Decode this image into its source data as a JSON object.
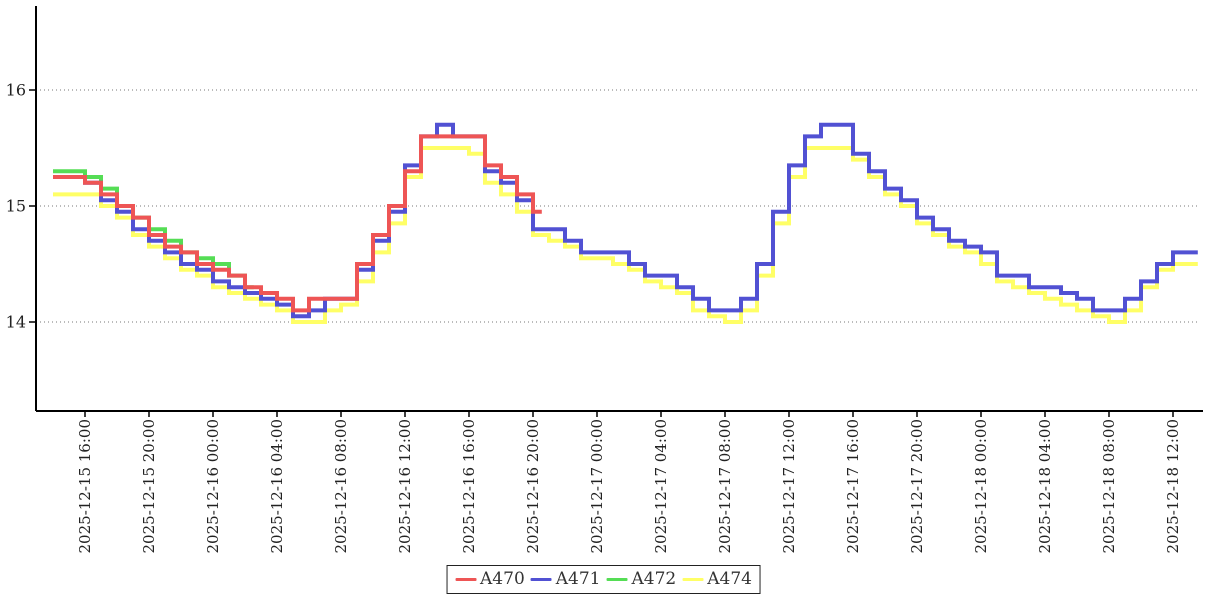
{
  "chart_data": {
    "type": "line",
    "step_interpolation": "step-after",
    "title": "",
    "xlabel": "",
    "ylabel": "",
    "grid": "horizontal-dotted",
    "legend_position": "bottom-center",
    "colors": {
      "axis": "#000000",
      "grid": "#777777",
      "tick_text": "#222222"
    },
    "y_axis": {
      "ticks": [
        16,
        15,
        14
      ],
      "range": [
        13.2,
        16.7
      ]
    },
    "x_axis": {
      "tick_interval_hours": 4,
      "tick_labels": [
        "2025-12-15 16:00",
        "2025-12-15 20:00",
        "2025-12-16 00:00",
        "2025-12-16 04:00",
        "2025-12-16 08:00",
        "2025-12-16 12:00",
        "2025-12-16 16:00",
        "2025-12-16 20:00",
        "2025-12-17 00:00",
        "2025-12-17 04:00",
        "2025-12-17 08:00",
        "2025-12-17 12:00",
        "2025-12-17 16:00",
        "2025-12-17 20:00",
        "2025-12-18 00:00",
        "2025-12-18 04:00",
        "2025-12-18 08:00",
        "2025-12-18 12:00"
      ]
    },
    "series_start": "2025-12-15 14:00",
    "sample_interval_hours": 1,
    "series": [
      {
        "name": "A470",
        "color": "#ee5555",
        "values": [
          15.25,
          15.25,
          15.2,
          15.1,
          15.0,
          14.9,
          14.75,
          14.65,
          14.6,
          14.5,
          14.45,
          14.4,
          14.3,
          14.25,
          14.2,
          14.1,
          14.2,
          14.2,
          14.2,
          14.5,
          14.75,
          15.0,
          15.3,
          15.6,
          15.6,
          15.6,
          15.6,
          15.35,
          15.25,
          15.1,
          14.95
        ]
      },
      {
        "name": "A471",
        "color": "#5151d3",
        "values": [
          15.25,
          15.25,
          15.2,
          15.05,
          14.95,
          14.8,
          14.7,
          14.6,
          14.5,
          14.45,
          14.35,
          14.3,
          14.25,
          14.2,
          14.15,
          14.05,
          14.1,
          14.2,
          14.2,
          14.45,
          14.7,
          14.95,
          15.35,
          15.6,
          15.7,
          15.6,
          15.6,
          15.3,
          15.2,
          15.05,
          14.8,
          14.8,
          14.7,
          14.6,
          14.6,
          14.6,
          14.5,
          14.4,
          14.4,
          14.3,
          14.2,
          14.1,
          14.1,
          14.2,
          14.5,
          14.95,
          15.35,
          15.6,
          15.7,
          15.7,
          15.45,
          15.3,
          15.15,
          15.05,
          14.9,
          14.8,
          14.7,
          14.65,
          14.6,
          14.4,
          14.4,
          14.3,
          14.3,
          14.25,
          14.2,
          14.1,
          14.1,
          14.2,
          14.35,
          14.5,
          14.6,
          14.6
        ]
      },
      {
        "name": "A472",
        "color": "#55dd55",
        "values": [
          15.3,
          15.3,
          15.25,
          15.15,
          15.0,
          14.9,
          14.8,
          14.7,
          14.6,
          14.55,
          14.5,
          14.4,
          14.3
        ]
      },
      {
        "name": "A474",
        "color": "#ffff66",
        "values": [
          15.1,
          15.1,
          15.1,
          15.0,
          14.9,
          14.75,
          14.65,
          14.55,
          14.45,
          14.4,
          14.3,
          14.25,
          14.2,
          14.15,
          14.1,
          14.0,
          14.0,
          14.1,
          14.15,
          14.35,
          14.6,
          14.85,
          15.25,
          15.5,
          15.5,
          15.5,
          15.45,
          15.2,
          15.1,
          14.95,
          14.75,
          14.7,
          14.65,
          14.55,
          14.55,
          14.5,
          14.45,
          14.35,
          14.3,
          14.25,
          14.1,
          14.05,
          14.0,
          14.1,
          14.4,
          14.85,
          15.25,
          15.5,
          15.5,
          15.5,
          15.4,
          15.25,
          15.1,
          15.0,
          14.85,
          14.75,
          14.65,
          14.6,
          14.5,
          14.35,
          14.3,
          14.25,
          14.2,
          14.15,
          14.1,
          14.05,
          14.0,
          14.1,
          14.3,
          14.45,
          14.5,
          14.5
        ]
      }
    ]
  }
}
